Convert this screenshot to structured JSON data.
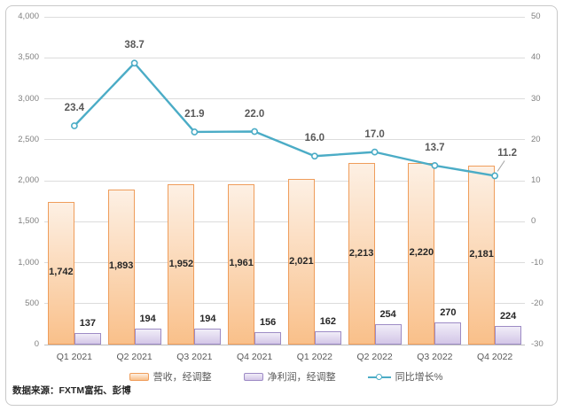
{
  "chart_data": {
    "type": "combo",
    "categories": [
      "Q1 2021",
      "Q2 2021",
      "Q3 2021",
      "Q4 2021",
      "Q1 2022",
      "Q2 2022",
      "Q3 2022",
      "Q4 2022"
    ],
    "series": [
      {
        "name": "营收，经调整",
        "type": "bar",
        "axis": "left",
        "values": [
          1742,
          1893,
          1952,
          1961,
          2021,
          2213,
          2220,
          2181
        ],
        "labels": [
          "1,742",
          "1,893",
          "1,952",
          "1,961",
          "2,021",
          "2,213",
          "2,220",
          "2,181"
        ]
      },
      {
        "name": "净利润，经调整",
        "type": "bar",
        "axis": "left",
        "values": [
          137,
          194,
          194,
          156,
          162,
          254,
          270,
          224
        ],
        "labels": [
          "137",
          "194",
          "194",
          "156",
          "162",
          "254",
          "270",
          "224"
        ]
      },
      {
        "name": "同比增长%",
        "type": "line",
        "axis": "right",
        "values": [
          23.4,
          38.7,
          21.9,
          22.0,
          16.0,
          17.0,
          13.7,
          11.2
        ],
        "labels": [
          "23.4",
          "38.7",
          "21.9",
          "22.0",
          "16.0",
          "17.0",
          "13.7",
          "11.2"
        ]
      }
    ],
    "left_axis": {
      "min": 0,
      "max": 4000,
      "step": 500,
      "tick_labels": [
        "0",
        "500",
        "1,000",
        "1,500",
        "2,000",
        "2,500",
        "3,000",
        "3,500",
        "4,000"
      ]
    },
    "right_axis": {
      "min": -30,
      "max": 50,
      "step": 10,
      "tick_labels": [
        "-30",
        "-20",
        "-10",
        "0",
        "10",
        "20",
        "30",
        "40",
        "50"
      ]
    },
    "grid": true,
    "legend_position": "bottom"
  },
  "source_note": "数据来源：FXTM富拓、彭博",
  "colors": {
    "revenue_fill_top": "#fdf0e4",
    "revenue_fill_bottom": "#f9c08a",
    "revenue_border": "#ef9d5b",
    "profit_fill_top": "#f1edf8",
    "profit_fill_bottom": "#d3c6e7",
    "profit_border": "#9d8bc5",
    "growth_line": "#4bacc6",
    "gridline": "#dcdcdc",
    "leader_line": "#a6a6a6"
  }
}
